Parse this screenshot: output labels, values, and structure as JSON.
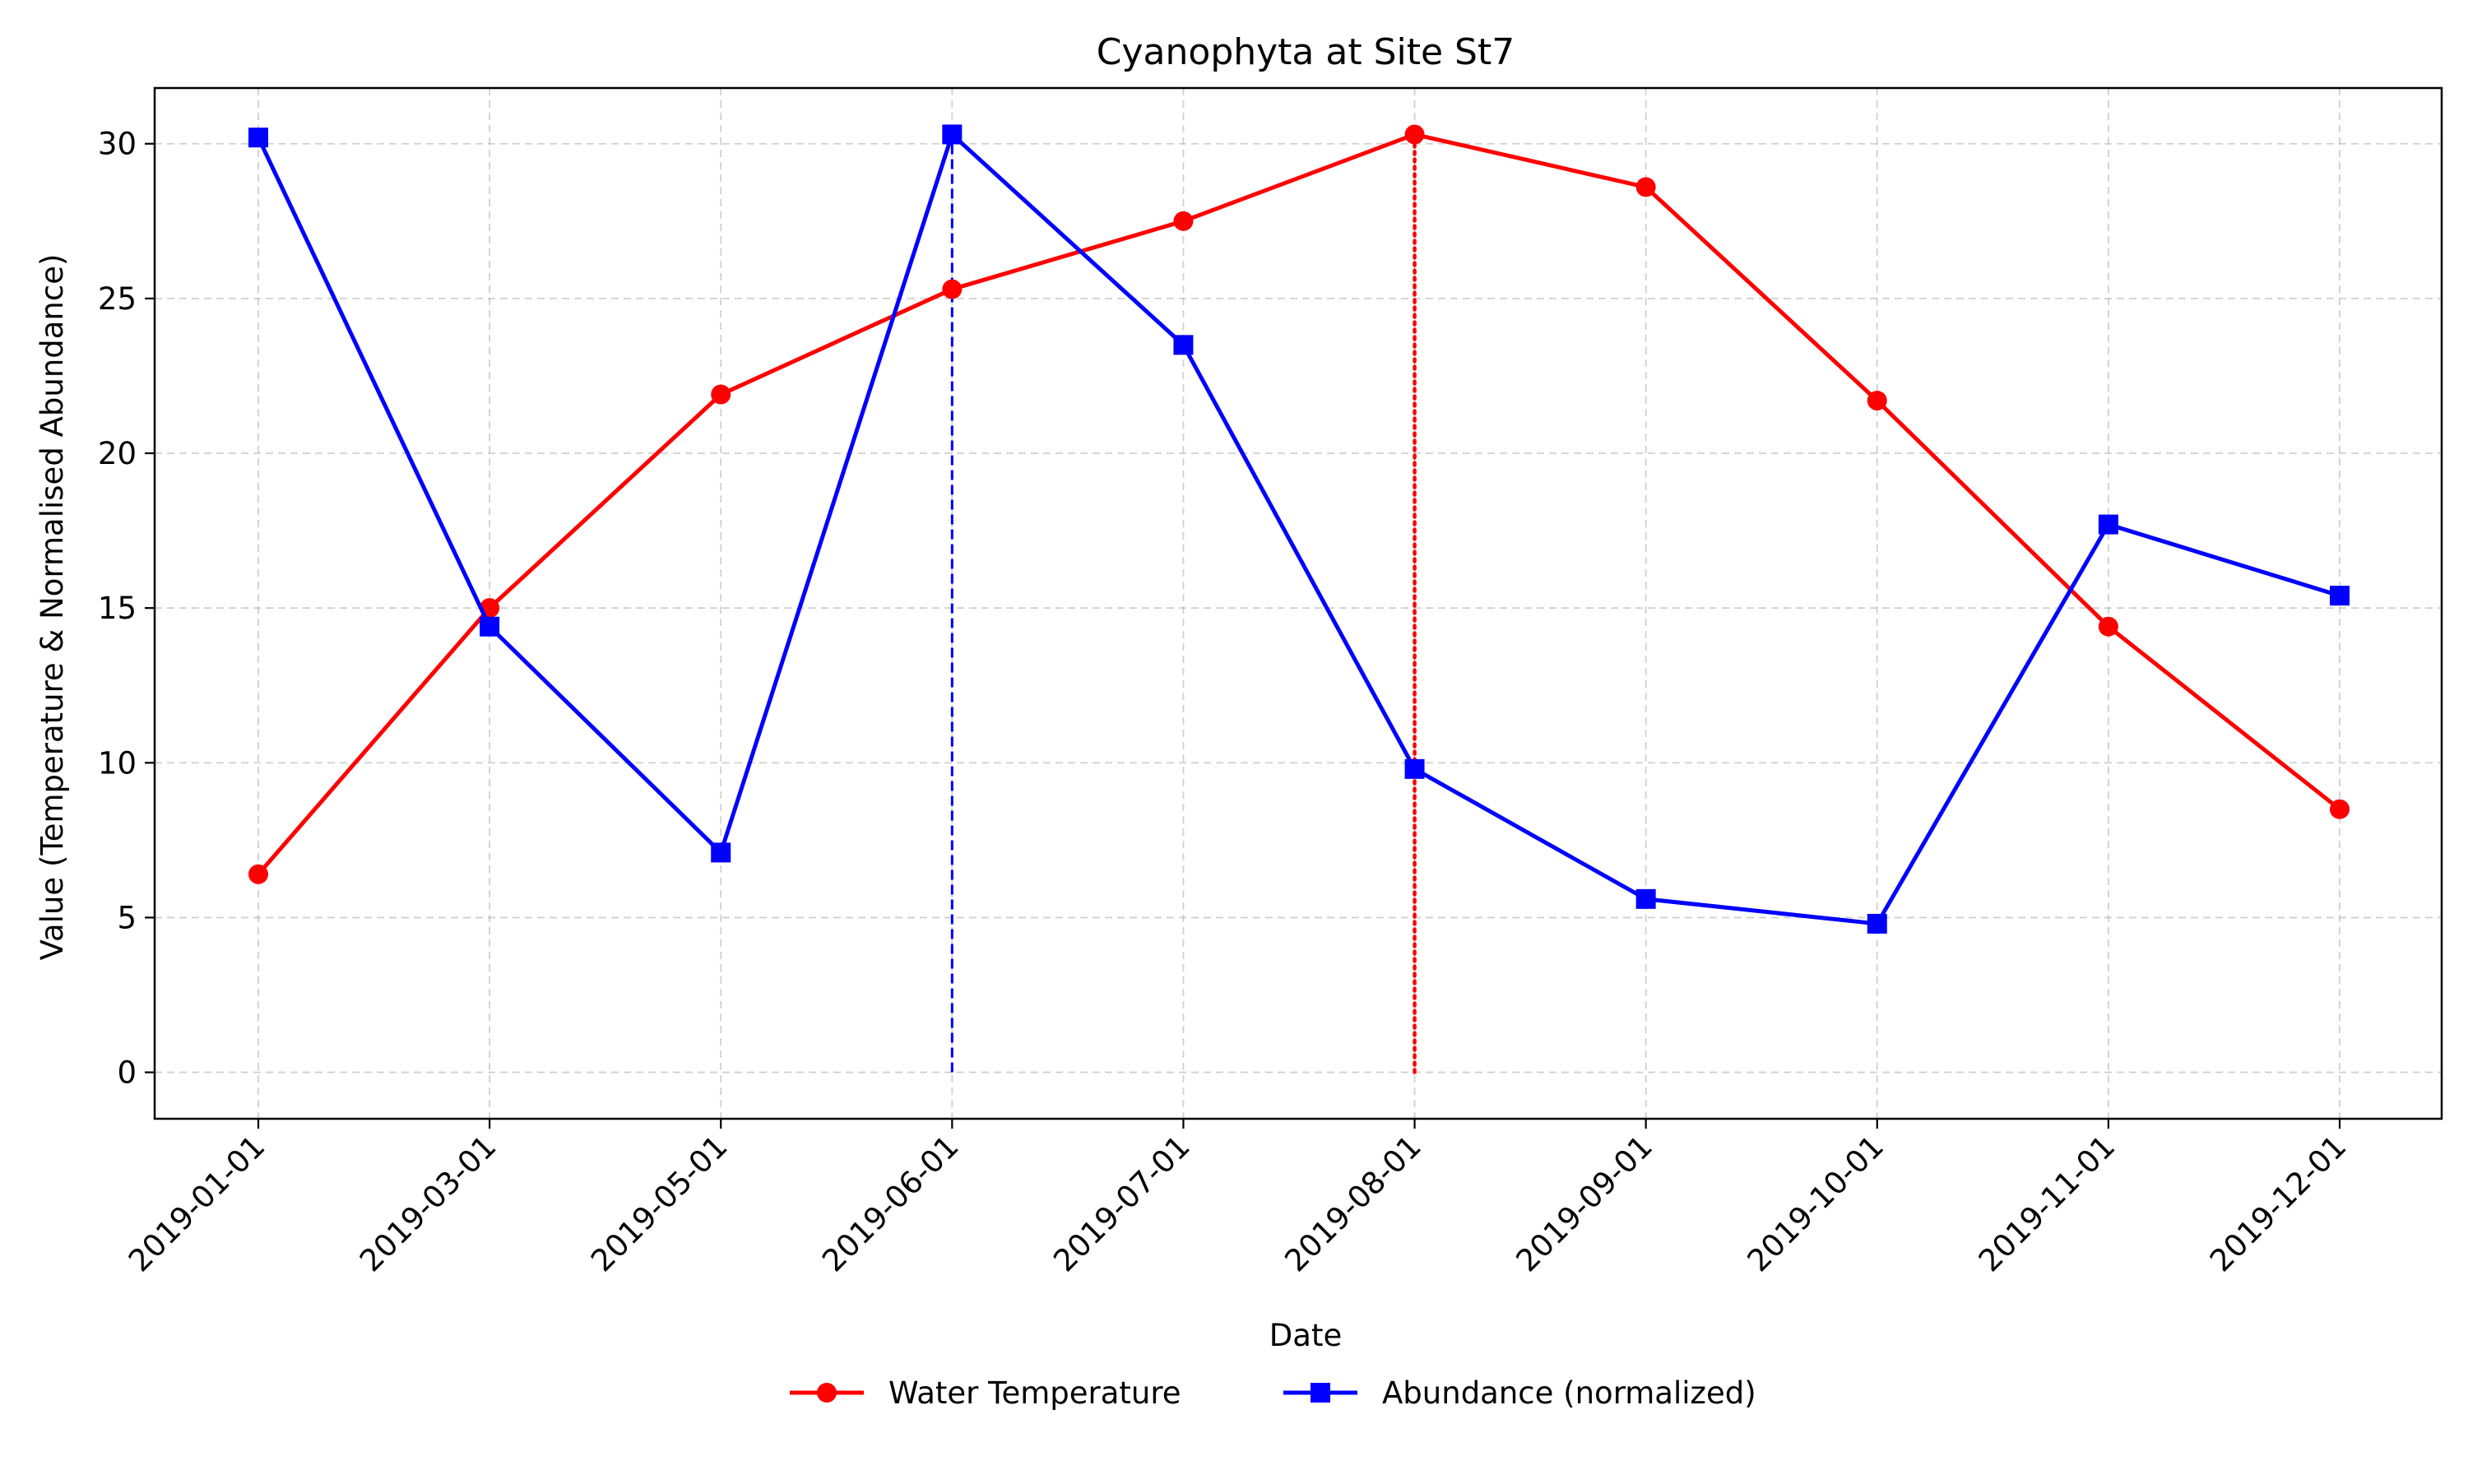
{
  "chart_data": {
    "type": "line",
    "title": "Cyanophyta at Site St7",
    "xlabel": "Date",
    "ylabel": "Value (Temperature & Normalised Abundance)",
    "categories": [
      "2019-01-01",
      "2019-03-01",
      "2019-05-01",
      "2019-06-01",
      "2019-07-01",
      "2019-08-01",
      "2019-09-01",
      "2019-10-01",
      "2019-11-01",
      "2019-12-01"
    ],
    "yticks": [
      0,
      5,
      10,
      15,
      20,
      25,
      30
    ],
    "ylim": [
      -1.5,
      31.8
    ],
    "grid": true,
    "legend_position": "bottom-center",
    "series": [
      {
        "name": "Water Temperature",
        "color": "#ff0000",
        "marker": "circle",
        "values": [
          6.4,
          15.0,
          21.9,
          25.3,
          27.5,
          30.3,
          28.6,
          21.7,
          14.4,
          8.5
        ]
      },
      {
        "name": "Abundance (normalized)",
        "color": "#0000ff",
        "marker": "square",
        "values": [
          30.2,
          14.4,
          7.1,
          30.3,
          23.5,
          9.8,
          5.6,
          4.8,
          17.7,
          15.4
        ]
      }
    ],
    "annotations": [
      {
        "type": "vline",
        "category": "2019-06-01",
        "from": 0,
        "to": 30.3,
        "color": "#0000ff",
        "style": "dashed"
      },
      {
        "type": "vline",
        "category": "2019-08-01",
        "from": 0,
        "to": 30.3,
        "color": "#ff0000",
        "style": "dotted"
      }
    ]
  }
}
